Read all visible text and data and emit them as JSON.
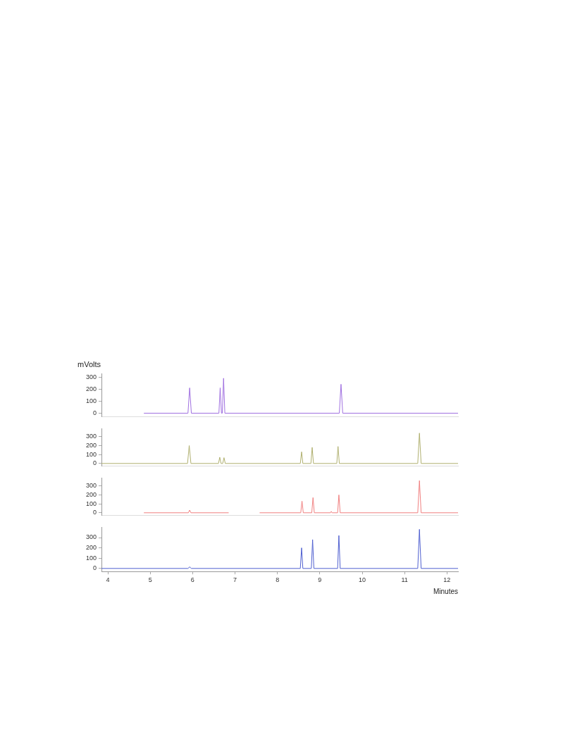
{
  "chart_data": [
    {
      "type": "line",
      "ylabel": "mVolts",
      "xlim": [
        3.85,
        12.26
      ],
      "ylim": [
        -30,
        330
      ],
      "yticks": [
        0,
        100,
        200,
        300
      ],
      "tick_labels": "y",
      "grid": false,
      "legend": false,
      "marker": "none",
      "series": [
        {
          "color": "#a070e0",
          "x": [
            4.85,
            5.89,
            5.93,
            5.97,
            6.62,
            6.65,
            6.68,
            6.7,
            6.73,
            6.76,
            9.46,
            9.5,
            9.54,
            12.26
          ],
          "values": [
            0,
            0,
            210,
            0,
            0,
            210,
            0,
            0,
            290,
            0,
            0,
            240,
            0,
            0
          ]
        }
      ]
    },
    {
      "type": "line",
      "xlim": [
        3.85,
        12.26
      ],
      "ylim": [
        -30,
        390
      ],
      "yticks": [
        0,
        100,
        200,
        300
      ],
      "tick_labels": "y",
      "grid": false,
      "legend": false,
      "marker": "none",
      "series": [
        {
          "color": "#b0b070",
          "x": [
            3.85,
            5.88,
            5.92,
            5.96,
            6.61,
            6.64,
            6.67,
            6.71,
            6.74,
            6.77,
            8.54,
            8.57,
            8.6,
            8.79,
            8.82,
            8.85,
            9.4,
            9.43,
            9.46,
            11.31,
            11.35,
            11.39,
            12.26
          ],
          "values": [
            0,
            0,
            200,
            0,
            0,
            70,
            0,
            0,
            65,
            0,
            0,
            130,
            0,
            0,
            180,
            0,
            0,
            190,
            0,
            0,
            340,
            0,
            0
          ]
        }
      ]
    },
    {
      "type": "line",
      "xlim": [
        3.85,
        12.26
      ],
      "ylim": [
        -30,
        390
      ],
      "yticks": [
        0,
        100,
        200,
        300
      ],
      "tick_labels": "y",
      "grid": false,
      "legend": false,
      "marker": "none",
      "series": [
        {
          "color": "#f08080",
          "x": [
            4.85,
            5.9,
            5.93,
            5.96,
            6.85,
            6.9,
            7.58,
            8.55,
            8.58,
            8.61,
            8.81,
            8.84,
            8.87,
            9.25,
            9.27,
            9.29,
            9.42,
            9.45,
            9.48,
            11.31,
            11.35,
            11.39,
            12.26
          ],
          "values": [
            0,
            0,
            30,
            0,
            0,
            null,
            0,
            0,
            130,
            0,
            0,
            170,
            0,
            0,
            15,
            0,
            0,
            200,
            0,
            0,
            360,
            0,
            0
          ]
        }
      ]
    },
    {
      "type": "line",
      "xlabel": "Minutes",
      "xlim": [
        3.85,
        12.26
      ],
      "ylim": [
        -30,
        400
      ],
      "xticks": [
        4,
        5,
        6,
        7,
        8,
        9,
        10,
        11,
        12
      ],
      "yticks": [
        0,
        100,
        200,
        300
      ],
      "grid": false,
      "legend": false,
      "marker": "none",
      "series": [
        {
          "color": "#5060d0",
          "x": [
            3.85,
            5.89,
            5.93,
            5.97,
            8.54,
            8.57,
            8.6,
            8.8,
            8.83,
            8.86,
            9.42,
            9.45,
            9.48,
            11.31,
            11.35,
            11.39,
            12.26
          ],
          "values": [
            0,
            0,
            15,
            0,
            0,
            200,
            0,
            0,
            280,
            0,
            0,
            320,
            0,
            0,
            380,
            0,
            0
          ]
        }
      ]
    }
  ]
}
